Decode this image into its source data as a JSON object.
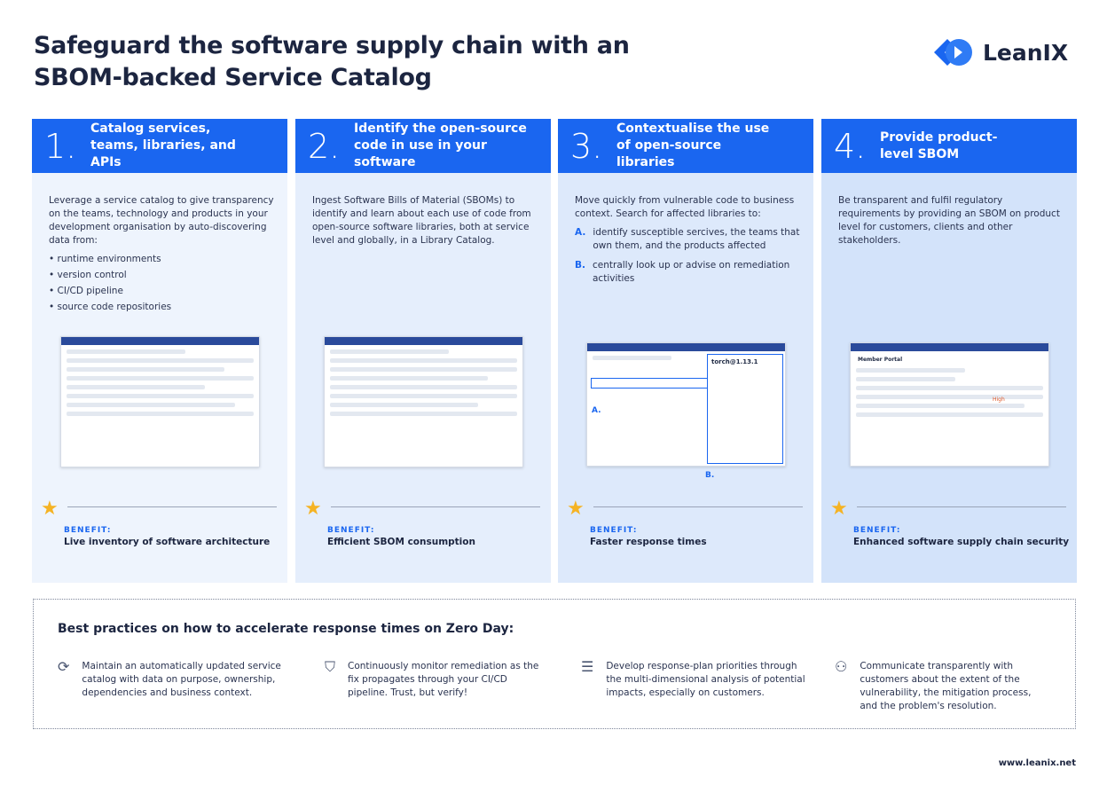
{
  "title_line1": "Safeguard the software supply chain with an",
  "title_line2": "SBOM-backed Service Catalog",
  "logo_text": "LeanIX",
  "brand_color": "#1a66f0",
  "columns": [
    {
      "num": "1.",
      "heading": "Catalog services, teams, libraries, and APIs",
      "desc": "Leverage a service catalog to give transparency on the teams, technology and products in your development organisation by auto-discovering data from:",
      "bullets": [
        "runtime environments",
        "version control",
        "CI/CD pipeline",
        "source code repositories"
      ],
      "benefit_label": "BENEFIT:",
      "benefit": "Live inventory of software architecture"
    },
    {
      "num": "2.",
      "heading": "Identify the open-source code in use in your software",
      "desc": "Ingest Software Bills of Material (SBOMs) to identify and learn about each use of code from open-source software libraries, both at service level and globally, in a Library Catalog.",
      "benefit_label": "BENEFIT:",
      "benefit": "Efficient SBOM consumption"
    },
    {
      "num": "3.",
      "heading": "Contextualise the use of open-source libraries",
      "desc": "Move quickly from vulnerable code to business context. Search for affected libraries to:",
      "items": [
        {
          "letter": "A.",
          "text": "identify susceptible sercives, the teams that own them, and the products affected"
        },
        {
          "letter": "B.",
          "text": "centrally look up or advise on remediation activities"
        }
      ],
      "shot_label_a": "A.",
      "shot_label_b": "B.",
      "shot_title": "torch@1.13.1",
      "benefit_label": "BENEFIT:",
      "benefit": "Faster response times"
    },
    {
      "num": "4.",
      "heading": "Provide product-level SBOM",
      "desc": "Be transparent and fulfil regulatory requirements by providing an SBOM on product level for customers, clients and other stakeholders.",
      "shot_title": "Member Portal",
      "shot_badge": "High",
      "benefit_label": "BENEFIT:",
      "benefit": "Enhanced software supply chain security"
    }
  ],
  "best": {
    "heading": "Best practices on how to accelerate response times on Zero Day:",
    "items": [
      {
        "icon": "refresh-icon",
        "text": "Maintain an automatically updated service catalog with data on purpose, ownership, dependencies and business context."
      },
      {
        "icon": "shield-check-icon",
        "text": "Continuously monitor remediation as the fix propagates through your CI/CD pipeline. Trust, but verify!"
      },
      {
        "icon": "list-icon",
        "text": "Develop response-plan priorities through the multi-dimensional analysis of potential impacts, especially on customers."
      },
      {
        "icon": "people-communicate-icon",
        "text": "Communicate transparently with customers about the extent of the vulnerability, the mitigation process, and the problem's resolution."
      }
    ]
  },
  "footer": "www.leanix.net"
}
